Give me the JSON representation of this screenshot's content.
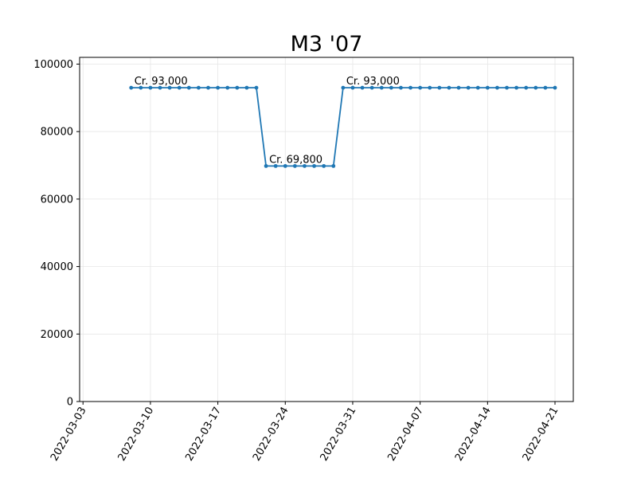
{
  "chart_data": {
    "type": "line",
    "title": "M3 '07",
    "xlabel": "",
    "ylabel": "",
    "ylim": [
      0,
      102000
    ],
    "xlim": [
      "2022-03-03",
      "2022-04-23"
    ],
    "grid": true,
    "color": "#1f77b4",
    "y_ticks": [
      0,
      20000,
      40000,
      60000,
      80000,
      100000
    ],
    "x_ticks": [
      "2022-03-03",
      "2022-03-10",
      "2022-03-17",
      "2022-03-24",
      "2022-03-31",
      "2022-04-07",
      "2022-04-14",
      "2022-04-21"
    ],
    "series": [
      {
        "x": [
          "2022-03-08",
          "2022-03-09",
          "2022-03-10",
          "2022-03-11",
          "2022-03-12",
          "2022-03-13",
          "2022-03-14",
          "2022-03-15",
          "2022-03-16",
          "2022-03-17",
          "2022-03-18",
          "2022-03-19",
          "2022-03-20",
          "2022-03-21",
          "2022-03-22",
          "2022-03-23",
          "2022-03-24",
          "2022-03-25",
          "2022-03-26",
          "2022-03-27",
          "2022-03-28",
          "2022-03-29",
          "2022-03-30",
          "2022-03-31",
          "2022-04-01",
          "2022-04-02",
          "2022-04-03",
          "2022-04-04",
          "2022-04-05",
          "2022-04-06",
          "2022-04-07",
          "2022-04-08",
          "2022-04-09",
          "2022-04-10",
          "2022-04-11",
          "2022-04-12",
          "2022-04-13",
          "2022-04-14",
          "2022-04-15",
          "2022-04-16",
          "2022-04-17",
          "2022-04-18",
          "2022-04-19",
          "2022-04-20",
          "2022-04-21"
        ],
        "y": [
          93000,
          93000,
          93000,
          93000,
          93000,
          93000,
          93000,
          93000,
          93000,
          93000,
          93000,
          93000,
          93000,
          93000,
          69800,
          69800,
          69800,
          69800,
          69800,
          69800,
          69800,
          69800,
          93000,
          93000,
          93000,
          93000,
          93000,
          93000,
          93000,
          93000,
          93000,
          93000,
          93000,
          93000,
          93000,
          93000,
          93000,
          93000,
          93000,
          93000,
          93000,
          93000,
          93000,
          93000,
          93000
        ]
      }
    ],
    "annotations": [
      {
        "x": "2022-03-08",
        "y": 93000,
        "text": "Cr. 93,000"
      },
      {
        "x": "2022-03-22",
        "y": 69800,
        "text": "Cr. 69,800"
      },
      {
        "x": "2022-03-30",
        "y": 93000,
        "text": "Cr. 93,000"
      }
    ]
  }
}
